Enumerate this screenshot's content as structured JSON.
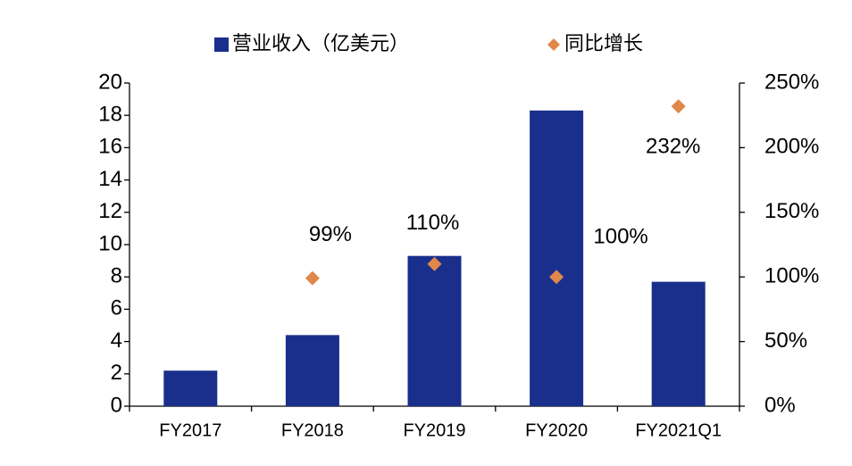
{
  "chart_data": {
    "type": "bar",
    "categories": [
      "FY2017",
      "FY2018",
      "FY2019",
      "FY2020",
      "FY2021Q1"
    ],
    "series": [
      {
        "name": "营业收入（亿美元）",
        "color": "#1a2f8c",
        "values": [
          2.2,
          4.4,
          9.3,
          18.3,
          7.7
        ]
      },
      {
        "name": "同比增长",
        "color": "#e0884a",
        "type": "scatter",
        "axis": "y2",
        "values": [
          null,
          99,
          110,
          100,
          232
        ],
        "value_labels": [
          null,
          "99%",
          "110%",
          "100%",
          "232%"
        ]
      }
    ],
    "ylim": [
      0,
      20
    ],
    "yticks": [
      0,
      2,
      4,
      6,
      8,
      10,
      12,
      14,
      16,
      18,
      20
    ],
    "y2lim": [
      0,
      250
    ],
    "y2ticks": [
      {
        "value": 0,
        "label": "0%"
      },
      {
        "value": 50,
        "label": "50%"
      },
      {
        "value": 100,
        "label": "100%"
      },
      {
        "value": 150,
        "label": "150%"
      },
      {
        "value": 200,
        "label": "200%"
      },
      {
        "value": 250,
        "label": "250%"
      }
    ],
    "legend": "top",
    "grid": false
  }
}
